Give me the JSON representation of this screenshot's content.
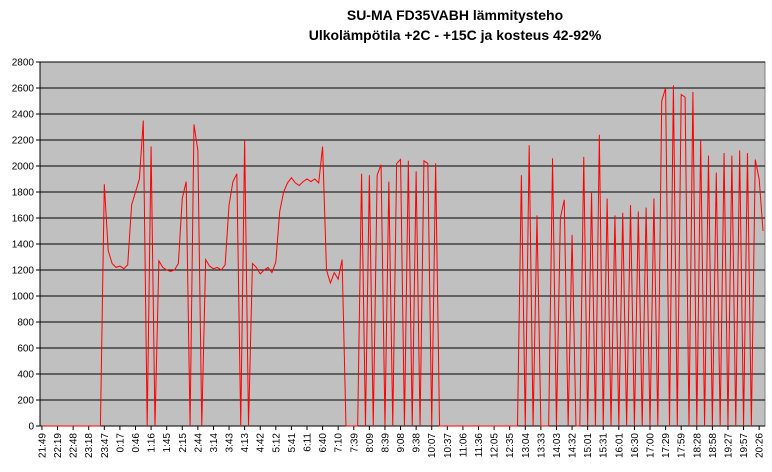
{
  "chart_data": {
    "type": "line",
    "title": "SU-MA FD35VABH lämmitysteho",
    "subtitle": "Ulkolämpötila  +2C - +15C ja kosteus 42-92%",
    "categories": [
      "21:49",
      null,
      null,
      null,
      "22:19",
      null,
      null,
      null,
      "22:48",
      null,
      null,
      null,
      "23:18",
      null,
      null,
      null,
      "23:47",
      null,
      null,
      null,
      "0:17",
      null,
      null,
      null,
      "0:46",
      null,
      null,
      null,
      "1:16",
      null,
      null,
      null,
      "1:45",
      null,
      null,
      null,
      "2:15",
      null,
      null,
      null,
      "2:44",
      null,
      null,
      null,
      "3:14",
      null,
      null,
      null,
      "3:43",
      null,
      null,
      null,
      "4:13",
      null,
      null,
      null,
      "4:42",
      null,
      null,
      null,
      "5:12",
      null,
      null,
      null,
      "5:41",
      null,
      null,
      null,
      "6:11",
      null,
      null,
      null,
      "6:40",
      null,
      null,
      null,
      "7:10",
      null,
      null,
      null,
      "7:39",
      null,
      null,
      null,
      "8:09",
      null,
      null,
      null,
      "8:39",
      null,
      null,
      null,
      "9:08",
      null,
      null,
      null,
      "9:38",
      null,
      null,
      null,
      "10:07",
      null,
      null,
      null,
      "10:37",
      null,
      null,
      null,
      "11:06",
      null,
      null,
      null,
      "11:36",
      null,
      null,
      null,
      "12:05",
      null,
      null,
      null,
      "12:35",
      null,
      null,
      null,
      "13:04",
      null,
      null,
      null,
      "13:33",
      null,
      null,
      null,
      "14:03",
      null,
      null,
      null,
      "14:32",
      null,
      null,
      null,
      "15:01",
      null,
      null,
      null,
      "15:31",
      null,
      null,
      null,
      "16:01",
      null,
      null,
      null,
      "16:30",
      null,
      null,
      null,
      "17:00",
      null,
      null,
      null,
      "17:29",
      null,
      null,
      null,
      "17:59",
      null,
      null,
      null,
      "18:28",
      null,
      null,
      null,
      "18:58",
      null,
      null,
      null,
      "19:27",
      null,
      null,
      null,
      "19:57",
      null,
      null,
      null,
      "20:26",
      null
    ],
    "values": [
      0,
      0,
      0,
      0,
      0,
      0,
      0,
      0,
      0,
      0,
      0,
      0,
      0,
      0,
      0,
      0,
      1860,
      1350,
      1250,
      1220,
      1230,
      1210,
      1240,
      1700,
      1800,
      1900,
      2350,
      0,
      2150,
      0,
      1270,
      1220,
      1200,
      1190,
      1200,
      1250,
      1750,
      1880,
      0,
      2320,
      2120,
      0,
      1280,
      1230,
      1210,
      1220,
      1200,
      1240,
      1700,
      1880,
      1940,
      0,
      2200,
      0,
      1250,
      1220,
      1170,
      1200,
      1220,
      1180,
      1260,
      1650,
      1800,
      1870,
      1910,
      1870,
      1850,
      1880,
      1900,
      1880,
      1900,
      1870,
      2150,
      1200,
      1100,
      1180,
      1130,
      1280,
      0,
      0,
      0,
      0,
      1940,
      0,
      1930,
      0,
      1930,
      2010,
      0,
      1880,
      0,
      2020,
      2050,
      0,
      2040,
      0,
      1960,
      0,
      2040,
      2020,
      0,
      2020,
      0,
      0,
      0,
      0,
      0,
      0,
      0,
      0,
      0,
      0,
      0,
      0,
      0,
      0,
      0,
      0,
      0,
      0,
      0,
      0,
      0,
      1930,
      0,
      2160,
      0,
      1620,
      0,
      0,
      0,
      2060,
      0,
      1600,
      1740,
      0,
      1470,
      0,
      0,
      2070,
      0,
      1800,
      0,
      2240,
      0,
      1750,
      0,
      1620,
      0,
      1640,
      0,
      1700,
      0,
      1650,
      0,
      1680,
      0,
      1750,
      0,
      2500,
      2600,
      0,
      2620,
      0,
      2550,
      2530,
      0,
      2570,
      0,
      2200,
      0,
      2080,
      0,
      1950,
      0,
      2100,
      0,
      2080,
      0,
      2120,
      0,
      2100,
      0,
      2050,
      1900,
      1500
    ],
    "color": "#ff0000",
    "plot_background": "#c0c0c0",
    "ylim": [
      0,
      2800
    ],
    "yticks": [
      0,
      200,
      400,
      600,
      800,
      1000,
      1200,
      1400,
      1600,
      1800,
      2000,
      2200,
      2400,
      2600,
      2800
    ],
    "grid": true
  }
}
